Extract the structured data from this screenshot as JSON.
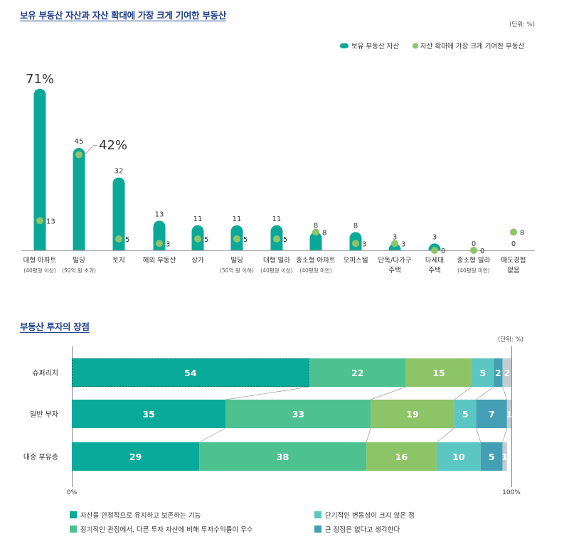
{
  "chart1_title": "보유 부동산 자산과 자산 확대에 가장 크게 기여한 부동산",
  "chart2_title": "부동산 투자의 장점",
  "colors": {
    "teal": "#0aa898",
    "green": "#8fc46a",
    "title": "#1f3f8f",
    "axis": "#aaaaaa"
  },
  "chart_data": [
    {
      "type": "bar",
      "title": "보유 부동산 자산과 자산 확대에 가장 크게 기여한 부동산",
      "unit": "(단위: %)",
      "legend": [
        "보유 부동산 자산",
        "자산 확대에 가장 크게 기여한 부동산"
      ],
      "highlights": [
        "71%",
        "42%"
      ],
      "categories": [
        [
          "대형 아파트",
          "(40평형 이상)"
        ],
        [
          "빌딩",
          "(50억 원 초과)"
        ],
        [
          "토지"
        ],
        [
          "해외 부동산"
        ],
        [
          "상가"
        ],
        [
          "빌딩",
          "(50억 원 이하)"
        ],
        [
          "대형 빌라",
          "(40평형 이상)"
        ],
        [
          "중소형 아파트",
          "(40평형 미만)"
        ],
        [
          "오피스텔"
        ],
        [
          "단독/다가구",
          "주택"
        ],
        [
          "다세대",
          "주택"
        ],
        [
          "중소형 빌라",
          "(40평형 미만)"
        ],
        [
          "매도경험",
          "없음"
        ]
      ],
      "series": [
        {
          "name": "보유 부동산 자산",
          "values": [
            71,
            45,
            32,
            13,
            11,
            11,
            11,
            8,
            8,
            3,
            3,
            0,
            0
          ],
          "labels": [
            "",
            "45",
            "32",
            "13",
            "11",
            "11",
            "11",
            "8",
            "8",
            "3",
            "3",
            "0",
            "0"
          ]
        },
        {
          "name": "자산 확대에 가장 크게 기여한 부동산",
          "values": [
            13,
            42,
            5,
            3,
            5,
            5,
            5,
            8,
            3,
            3,
            0,
            0,
            8
          ],
          "labels": [
            "13",
            "",
            "5",
            "3",
            "5",
            "5",
            "5",
            "8",
            "3",
            "3",
            "0",
            "0",
            "8"
          ]
        }
      ]
    },
    {
      "type": "stacked-bar-horizontal",
      "title": "부동산 투자의 장점",
      "unit": "(단위: %)",
      "categories": [
        "슈퍼리치",
        "일반 부자",
        "대중 부유층"
      ],
      "series": [
        {
          "name": "자산을 안정적으로 유지하고 보존하는 기능",
          "color": "#0aaa9b",
          "values": [
            54,
            35,
            29
          ]
        },
        {
          "name": "장기적인 관점에서, 다른 투자 자산에 비해 투자수익률이 우수",
          "color": "#4ec190",
          "values": [
            22,
            33,
            38
          ]
        },
        {
          "name": "",
          "color": "#8cc467",
          "values": [
            15,
            19,
            16
          ]
        },
        {
          "name": "단기적인 변동성이 크지 않은 점",
          "color": "#5cc6c2",
          "values": [
            5,
            5,
            10
          ]
        },
        {
          "name": "큰 장점은 없다고 생각한다",
          "color": "#449fb5",
          "values": [
            2,
            7,
            5
          ]
        },
        {
          "name": "",
          "color": "#c4ccd2",
          "values": [
            2,
            1,
            1
          ]
        }
      ],
      "x_tick_labels": [
        "0%",
        "100%"
      ],
      "xlim": [
        0,
        100
      ]
    }
  ]
}
